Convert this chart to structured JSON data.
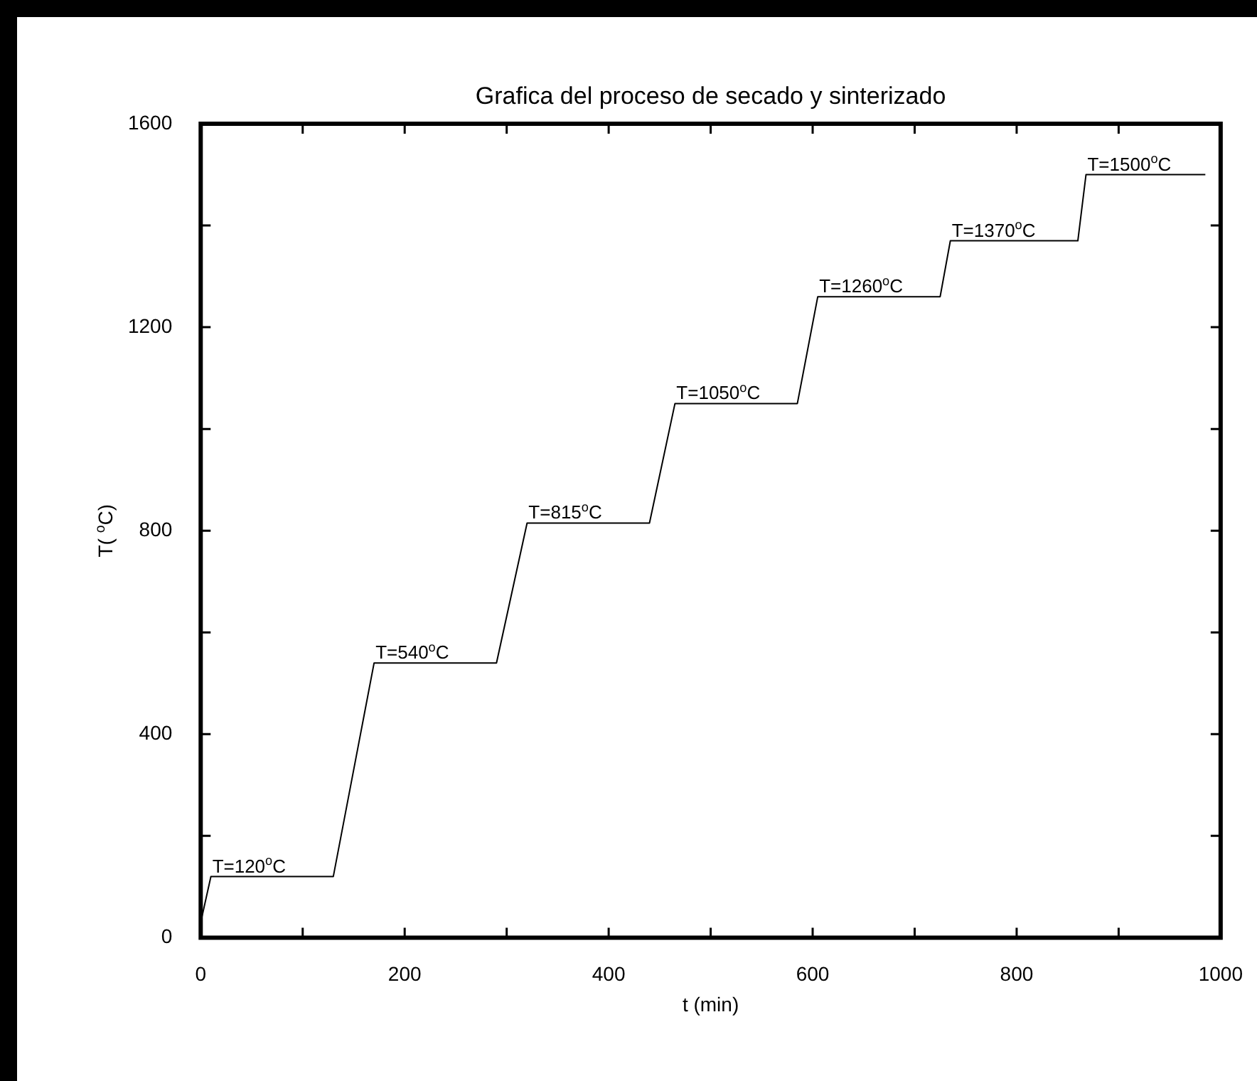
{
  "chart_data": {
    "type": "line",
    "title": "Grafica del proceso de secado y sinterizado",
    "xlabel": "t (min)",
    "ylabel": "T( $^{o}$C)",
    "x": [
      0,
      10,
      130,
      170,
      290,
      320,
      440,
      465,
      585,
      605,
      725,
      735,
      860,
      868,
      985
    ],
    "series": [
      {
        "color": "#000000",
        "values": [
          30,
          120,
          120,
          540,
          540,
          815,
          815,
          1050,
          1050,
          1260,
          1260,
          1370,
          1370,
          1500,
          1500
        ]
      }
    ],
    "xlim": [
      0,
      1000
    ],
    "xticks": [
      0,
      {
        "value": 100,
        "label": null
      },
      200,
      {
        "value": 300,
        "label": null
      },
      400,
      {
        "value": 500,
        "label": null
      },
      600,
      {
        "value": 700,
        "label": null
      },
      800,
      {
        "value": 900,
        "label": null
      },
      1000
    ],
    "ylim": [
      0,
      1600
    ],
    "yticks": [
      0,
      {
        "value": 200,
        "label": null
      },
      400,
      {
        "value": 600,
        "label": null
      },
      800,
      {
        "value": 1000,
        "label": null
      },
      1200,
      {
        "value": 1400,
        "label": null
      },
      1600
    ],
    "grid": false,
    "legend": false,
    "marker": "none",
    "line_style": "solid",
    "annotations": [
      {
        "text": "T=120$^{o}$C",
        "x": 10,
        "y": 120
      },
      {
        "text": "T=540$^{o}$C",
        "x": 170,
        "y": 540
      },
      {
        "text": "T=815$^{o}$C",
        "x": 320,
        "y": 815
      },
      {
        "text": "T=1050$^{o}$C",
        "x": 465,
        "y": 1050
      },
      {
        "text": "T=1260$^{o}$C",
        "x": 605,
        "y": 1260
      },
      {
        "text": "T=1370$^{o}$C",
        "x": 735,
        "y": 1370
      },
      {
        "text": "T=1500$^{o}$C",
        "x": 868,
        "y": 1500
      }
    ]
  }
}
